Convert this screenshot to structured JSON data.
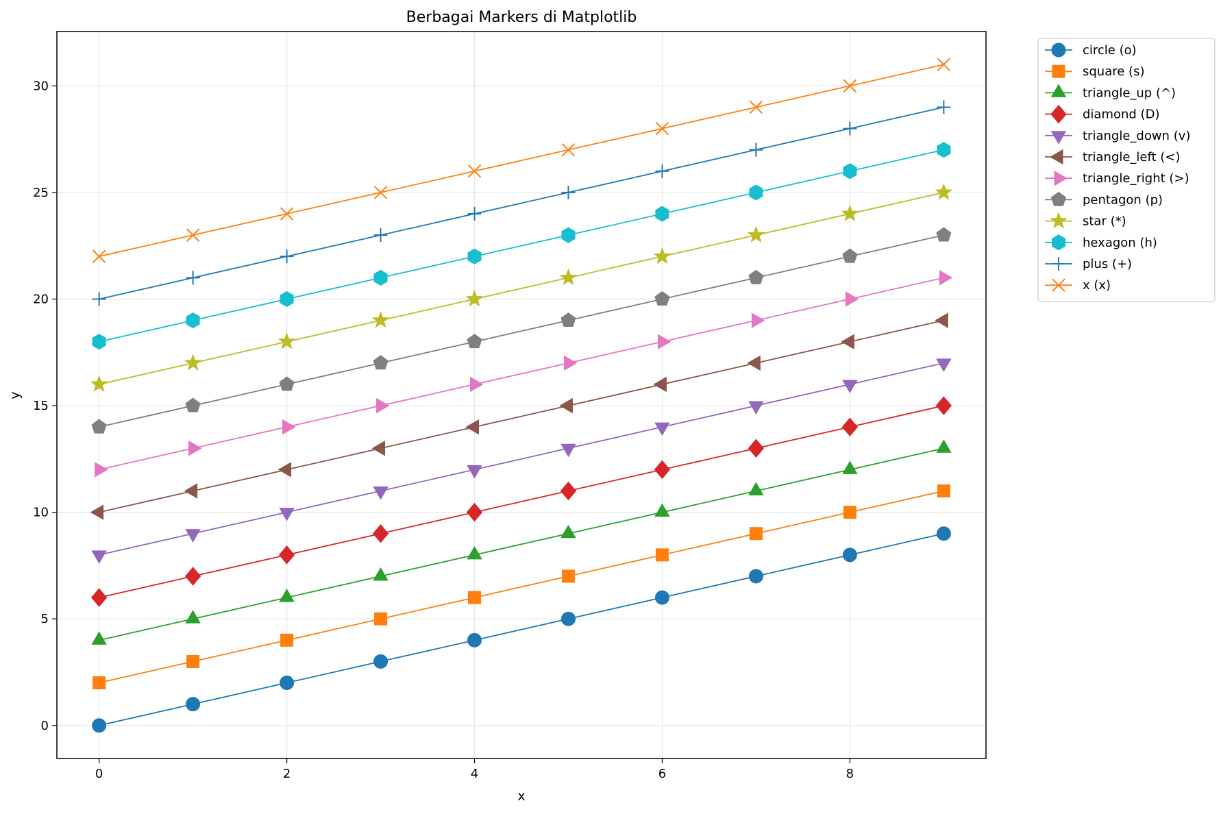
{
  "chart_data": {
    "type": "line",
    "title": "Berbagai Markers di Matplotlib",
    "xlabel": "x",
    "ylabel": "y",
    "xlim": [
      -0.45,
      9.45
    ],
    "ylim": [
      -1.55,
      32.55
    ],
    "xticks": [
      "0",
      "2",
      "4",
      "6",
      "8"
    ],
    "xtick_values": [
      0,
      2,
      4,
      6,
      8
    ],
    "yticks": [
      "0",
      "5",
      "10",
      "15",
      "20",
      "25",
      "30"
    ],
    "ytick_values": [
      0,
      5,
      10,
      15,
      20,
      25,
      30
    ],
    "grid": true,
    "legend_position": "outside-top-right",
    "x": [
      0,
      1,
      2,
      3,
      4,
      5,
      6,
      7,
      8,
      9
    ],
    "series": [
      {
        "name": "circle (o)",
        "marker": "circle",
        "color": "#1f77b4",
        "values": [
          0,
          1,
          2,
          3,
          4,
          5,
          6,
          7,
          8,
          9
        ]
      },
      {
        "name": "square (s)",
        "marker": "square",
        "color": "#ff7f0e",
        "values": [
          2,
          3,
          4,
          5,
          6,
          7,
          8,
          9,
          10,
          11
        ]
      },
      {
        "name": "triangle_up (^)",
        "marker": "triangle-up",
        "color": "#2ca02c",
        "values": [
          4,
          5,
          6,
          7,
          8,
          9,
          10,
          11,
          12,
          13
        ]
      },
      {
        "name": "diamond (D)",
        "marker": "diamond",
        "color": "#d62728",
        "values": [
          6,
          7,
          8,
          9,
          10,
          11,
          12,
          13,
          14,
          15
        ]
      },
      {
        "name": "triangle_down (v)",
        "marker": "triangle-down",
        "color": "#9467bd",
        "values": [
          8,
          9,
          10,
          11,
          12,
          13,
          14,
          15,
          16,
          17
        ]
      },
      {
        "name": "triangle_left (<)",
        "marker": "triangle-left",
        "color": "#8c564b",
        "values": [
          10,
          11,
          12,
          13,
          14,
          15,
          16,
          17,
          18,
          19
        ]
      },
      {
        "name": "triangle_right (>)",
        "marker": "triangle-right",
        "color": "#e377c2",
        "values": [
          12,
          13,
          14,
          15,
          16,
          17,
          18,
          19,
          20,
          21
        ]
      },
      {
        "name": "pentagon (p)",
        "marker": "pentagon",
        "color": "#7f7f7f",
        "values": [
          14,
          15,
          16,
          17,
          18,
          19,
          20,
          21,
          22,
          23
        ]
      },
      {
        "name": "star (*)",
        "marker": "star",
        "color": "#bcbd22",
        "values": [
          16,
          17,
          18,
          19,
          20,
          21,
          22,
          23,
          24,
          25
        ]
      },
      {
        "name": "hexagon (h)",
        "marker": "hexagon",
        "color": "#17becf",
        "values": [
          18,
          19,
          20,
          21,
          22,
          23,
          24,
          25,
          26,
          27
        ]
      },
      {
        "name": "plus (+)",
        "marker": "plus",
        "color": "#1f77b4",
        "values": [
          20,
          21,
          22,
          23,
          24,
          25,
          26,
          27,
          28,
          29
        ]
      },
      {
        "name": "x (x)",
        "marker": "x",
        "color": "#ff7f0e",
        "values": [
          22,
          23,
          24,
          25,
          26,
          27,
          28,
          29,
          30,
          31
        ]
      }
    ]
  }
}
